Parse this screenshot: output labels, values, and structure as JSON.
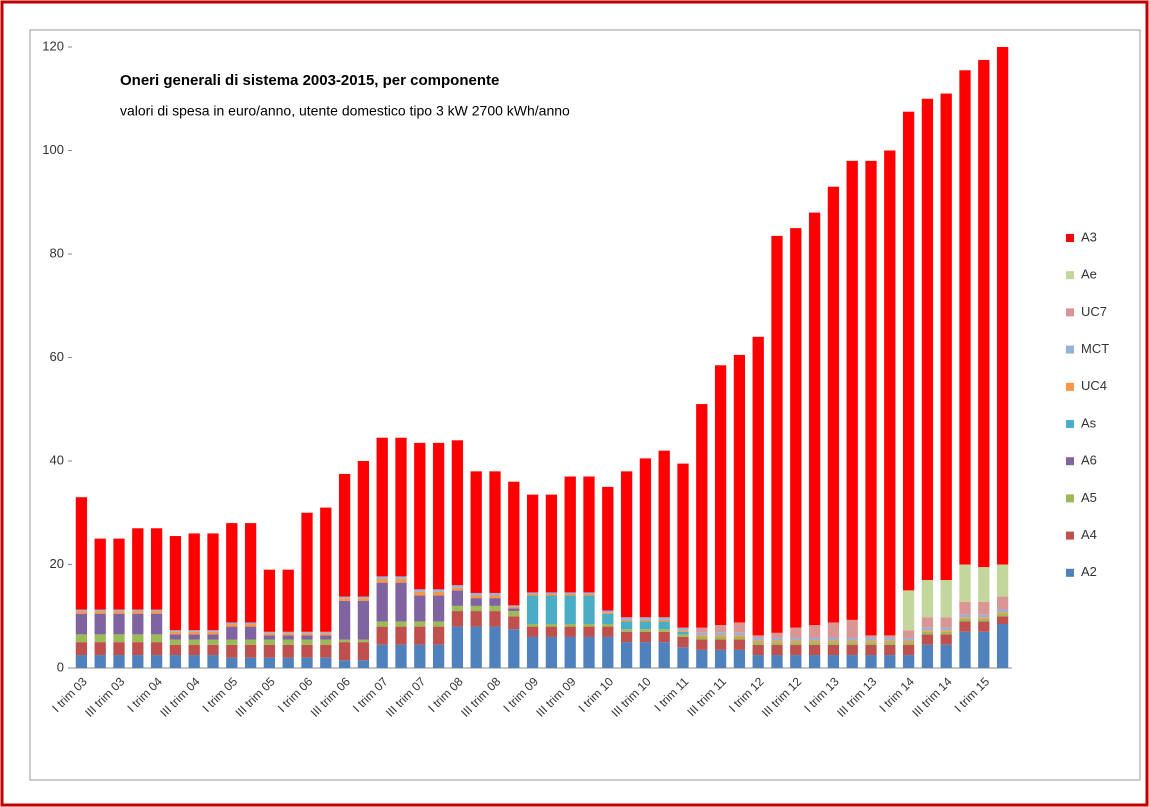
{
  "chart_data": {
    "type": "stacked_bar",
    "title": "Oneri generali di sistema 2003-2015, per componente",
    "subtitle": "valori di spesa in euro/anno, utente domestico tipo 3 kW 2700 kWh/anno",
    "categories": [
      "I trim 03",
      null,
      "III trim 03",
      null,
      "I trim 04",
      null,
      "III trim 04",
      null,
      "I trim 05",
      null,
      "III trim 05",
      null,
      "I trim 06",
      null,
      "III trim 06",
      null,
      "I trim 07",
      null,
      "III trim 07",
      null,
      "I trim 08",
      null,
      "III trim 08",
      null,
      "I trim 09",
      null,
      "III trim 09",
      null,
      "I trim 10",
      null,
      "III trim 10",
      null,
      "I trim 11",
      null,
      "III trim 11",
      null,
      "I trim 12",
      null,
      "III trim 12",
      null,
      "I trim 13",
      null,
      "III trim 13",
      null,
      "I trim 14",
      null,
      "III trim 14",
      null,
      "I trim 15",
      null
    ],
    "series": [
      {
        "name": "A2",
        "color": "#4f81bd",
        "values": [
          2.5,
          2.5,
          2.5,
          2.5,
          2.5,
          2.5,
          2.5,
          2.5,
          2,
          2,
          2,
          2,
          2,
          2,
          1.5,
          1.5,
          4.5,
          4.5,
          4.5,
          4.5,
          8,
          8,
          8,
          7.5,
          6,
          6,
          6,
          6,
          6,
          5,
          5,
          5,
          4,
          3.5,
          3.5,
          3.5,
          2.5,
          2.5,
          2.5,
          2.5,
          2.5,
          2.5,
          2.5,
          2.5,
          2.5,
          4.5,
          4.5,
          7,
          7,
          8.5
        ]
      },
      {
        "name": "A4",
        "color": "#c0504d",
        "values": [
          2.5,
          2.5,
          2.5,
          2.5,
          2.5,
          2,
          2,
          2,
          2.5,
          2.5,
          2.5,
          2.5,
          2.5,
          2.5,
          3.5,
          3.5,
          3.5,
          3.5,
          3.5,
          3.5,
          3,
          3,
          3,
          2.5,
          2,
          2,
          2,
          2,
          2,
          2,
          2,
          2,
          2,
          2,
          2,
          2,
          2,
          2,
          2,
          2,
          2,
          2,
          2,
          2,
          2,
          2,
          2,
          2,
          2,
          1.5
        ]
      },
      {
        "name": "A5",
        "color": "#9bbb59",
        "values": [
          1.5,
          1.5,
          1.5,
          1.5,
          1.5,
          1,
          1,
          1,
          1,
          1,
          1,
          1,
          1,
          1,
          0.5,
          0.5,
          1,
          1,
          1,
          1,
          1,
          1,
          1,
          1,
          0.5,
          0.5,
          0.5,
          0.5,
          0.5,
          0.5,
          0.5,
          0.5,
          0.5,
          0.5,
          0.5,
          0.5,
          0.5,
          0.5,
          0.5,
          0.5,
          0.5,
          0.5,
          0.5,
          0.5,
          0.5,
          0.5,
          0.5,
          0.5,
          0.5,
          0.5
        ]
      },
      {
        "name": "A6",
        "color": "#8064a2",
        "values": [
          4,
          4,
          4,
          4,
          4,
          1,
          1,
          1,
          2.5,
          2.5,
          0.8,
          0.8,
          0.8,
          0.8,
          7.5,
          7.5,
          7.5,
          7.5,
          5,
          5,
          3,
          1.5,
          1.5,
          0.5,
          0,
          0,
          0,
          0,
          0,
          0,
          0,
          0,
          0,
          0,
          0,
          0,
          0,
          0,
          0,
          0,
          0,
          0,
          0,
          0,
          0,
          0,
          0,
          0,
          0,
          0
        ]
      },
      {
        "name": "As",
        "color": "#4bacc6",
        "values": [
          0,
          0,
          0,
          0,
          0,
          0,
          0,
          0,
          0,
          0,
          0,
          0,
          0,
          0,
          0,
          0,
          0,
          0,
          0,
          0,
          0,
          0,
          0,
          0,
          5.5,
          5.5,
          5.5,
          5.5,
          2,
          1.5,
          1.5,
          1.5,
          0.5,
          0,
          0,
          0,
          0,
          0,
          0,
          0,
          0,
          0,
          0,
          0,
          0,
          0,
          0,
          0,
          0,
          0
        ]
      },
      {
        "name": "UC4",
        "color": "#f79646",
        "values": [
          0.5,
          0.5,
          0.5,
          0.5,
          0.5,
          0.5,
          0.5,
          0.5,
          0.5,
          0.5,
          0.4,
          0.4,
          0.4,
          0.4,
          0.5,
          0.5,
          0.7,
          0.7,
          0.7,
          0.7,
          0.5,
          0.5,
          0.5,
          0.3,
          0.3,
          0.3,
          0.3,
          0.3,
          0.3,
          0.3,
          0.3,
          0.3,
          0.3,
          0.3,
          0.3,
          0.3,
          0.3,
          0.3,
          0.3,
          0.3,
          0.3,
          0.3,
          0.3,
          0.3,
          0.3,
          0.3,
          0.3,
          0.3,
          0.3,
          0.3
        ]
      },
      {
        "name": "MCT",
        "color": "#95b3d7",
        "values": [
          0.3,
          0.3,
          0.3,
          0.3,
          0.3,
          0.3,
          0.3,
          0.3,
          0.3,
          0.3,
          0.3,
          0.3,
          0.3,
          0.3,
          0.3,
          0.3,
          0.5,
          0.5,
          0.5,
          0.5,
          0.5,
          0.5,
          0.5,
          0.3,
          0.3,
          0.3,
          0.3,
          0.3,
          0.3,
          0.5,
          0.5,
          0.5,
          0.5,
          0.5,
          0.5,
          0.5,
          0.5,
          0.5,
          0.5,
          0.5,
          0.5,
          0.5,
          0.5,
          0.5,
          0.5,
          0.5,
          0.5,
          0.5,
          0.5,
          0.5
        ]
      },
      {
        "name": "UC7",
        "color": "#d99694",
        "values": [
          0,
          0,
          0,
          0,
          0,
          0,
          0,
          0,
          0,
          0,
          0,
          0,
          0,
          0,
          0,
          0,
          0,
          0,
          0,
          0,
          0,
          0,
          0,
          0,
          0,
          0,
          0,
          0,
          0,
          0,
          0,
          0,
          0,
          1,
          1.5,
          2,
          0.5,
          1,
          2,
          2.5,
          3,
          3.5,
          0.5,
          0.5,
          1.5,
          2,
          2,
          2.5,
          2.5,
          2.5
        ]
      },
      {
        "name": "Ae",
        "color": "#c3d69b",
        "values": [
          0,
          0,
          0,
          0,
          0,
          0,
          0,
          0,
          0,
          0,
          0,
          0,
          0,
          0,
          0,
          0,
          0,
          0,
          0,
          0,
          0,
          0,
          0,
          0,
          0,
          0,
          0,
          0,
          0,
          0,
          0,
          0,
          0,
          0,
          0,
          0,
          0,
          0,
          0,
          0,
          0,
          0,
          0,
          0,
          7.7,
          7.2,
          7.2,
          7.2,
          6.7,
          6.2
        ]
      },
      {
        "name": "A3",
        "color": "#ff0000",
        "values": [
          21.7,
          13.7,
          13.7,
          15.7,
          15.7,
          18.2,
          18.7,
          18.7,
          19.2,
          19.2,
          12,
          12,
          23,
          24,
          23.7,
          26.2,
          26.8,
          26.8,
          28.3,
          28.3,
          28,
          23.5,
          23.5,
          23.9,
          18.9,
          18.9,
          22.4,
          22.4,
          23.9,
          28.2,
          30.7,
          32.2,
          31.7,
          43.2,
          50.2,
          51.7,
          57.7,
          76.7,
          77.2,
          79.7,
          84.2,
          88.7,
          91.7,
          93.7,
          92.5,
          93,
          94,
          95.5,
          98,
          100
        ]
      }
    ],
    "ylim": [
      0,
      120
    ],
    "yticks": [
      0,
      20,
      40,
      60,
      80,
      100,
      120
    ],
    "grid": false,
    "legend": "right"
  }
}
